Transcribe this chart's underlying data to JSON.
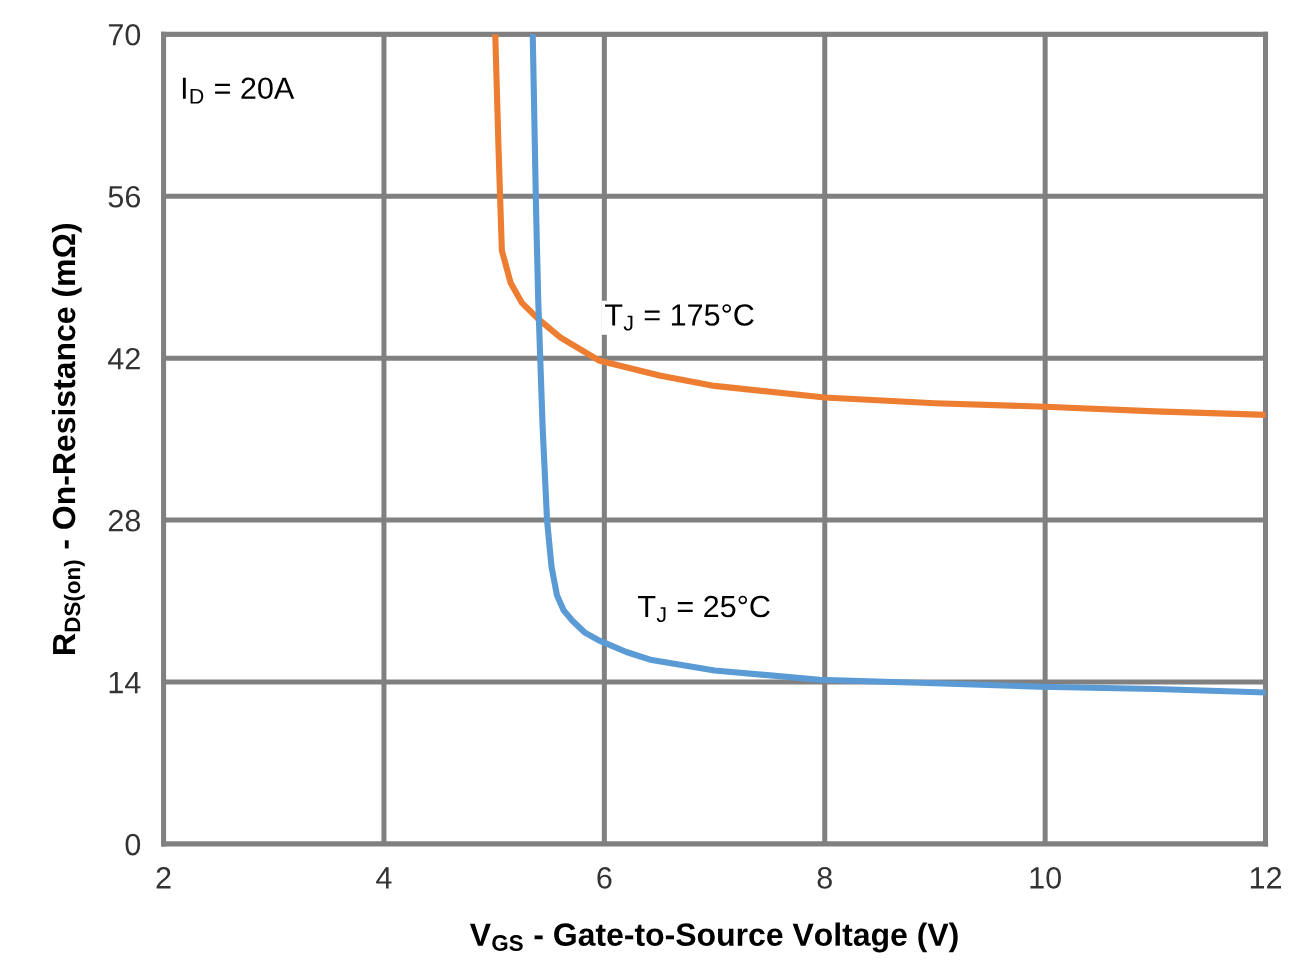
{
  "chart_data": {
    "type": "line",
    "xlabel": "V$_{GS}$ - Gate-to-Source Voltage (V)",
    "ylabel": "R$_{DS(on)}$ - On-Resistance (mΩ)",
    "xlim": [
      2,
      12
    ],
    "ylim": [
      0,
      70
    ],
    "xticks": [
      2,
      4,
      6,
      8,
      10,
      12
    ],
    "yticks": [
      0,
      14,
      28,
      42,
      56,
      70
    ],
    "grid": true,
    "marker": "none",
    "line_style": "solid",
    "series": [
      {
        "color": "#ed7d31",
        "x": [
          5.01,
          5.04,
          5.07,
          5.15,
          5.25,
          5.41,
          5.6,
          5.95,
          6.5,
          7.0,
          8.0,
          9.0,
          10.0,
          11.0,
          12.0
        ],
        "values": [
          70,
          60,
          51.3,
          48.5,
          46.8,
          45.3,
          43.8,
          41.8,
          40.5,
          39.6,
          38.6,
          38.1,
          37.8,
          37.4,
          37.1
        ]
      },
      {
        "color": "#5b9bd5",
        "x": [
          5.35,
          5.38,
          5.4,
          5.44,
          5.48,
          5.52,
          5.57,
          5.63,
          5.71,
          5.82,
          5.95,
          6.2,
          6.43,
          7.0,
          7.95,
          9.0,
          9.95,
          11.0,
          12.0
        ],
        "values": [
          70,
          55,
          47,
          36,
          28,
          24,
          21.5,
          20.2,
          19.3,
          18.3,
          17.6,
          16.6,
          15.9,
          15.0,
          14.2,
          13.9,
          13.6,
          13.4,
          13.1
        ]
      }
    ],
    "annotations": [
      "I$_{D}$ = 20A",
      "T$_{J}$ = 175°C",
      "T$_{J}$ = 25°C"
    ]
  }
}
